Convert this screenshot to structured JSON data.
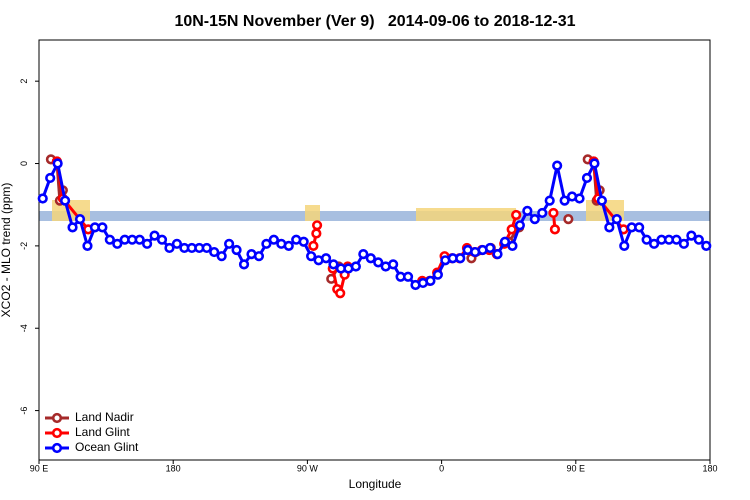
{
  "chart_data": {
    "type": "line",
    "title": "10N-15N November (Ver 9)   2014-09-06 to 2018-12-31",
    "x_label": "Longitude",
    "y_label": "XCO2 - MLO trend (ppm)",
    "xlim": [
      90,
      540
    ],
    "xticks": [
      {
        "value": 90,
        "label": "90 E"
      },
      180,
      {
        "value": 270,
        "label": "90 W"
      },
      {
        "value": 360,
        "label": "0"
      },
      {
        "value": 450,
        "label": "90 E"
      },
      {
        "value": 540,
        "label": "180"
      }
    ],
    "ylim": [
      -7.2,
      3
    ],
    "yticks": [
      -6,
      -4,
      -2,
      0,
      2
    ],
    "legend": "bottom-left",
    "series": [
      {
        "name": "Land Nadir",
        "color": "#a52a2a",
        "x": [
          98,
          102,
          104,
          106,
          null,
          286,
          291,
          null,
          380,
          393,
          null,
          405,
          412,
          null,
          445,
          null,
          458,
          462,
          464,
          466
        ],
        "values": [
          0.1,
          0.05,
          -0.9,
          -0.65,
          null,
          -2.8,
          -2.5,
          null,
          -2.3,
          -2.05,
          null,
          -1.9,
          -1.55,
          null,
          -1.35,
          null,
          0.1,
          0.05,
          -0.9,
          -0.65
        ]
      },
      {
        "name": "Land Glint",
        "color": "#ff0000",
        "x": [
          102,
          106,
          123,
          null,
          274,
          276,
          276.5,
          null,
          287,
          290,
          292,
          295,
          297,
          null,
          347,
          352,
          357,
          362,
          367,
          372,
          377,
          382,
          387,
          392,
          397,
          402,
          407,
          410,
          null,
          435,
          436,
          null,
          462,
          465,
          482
        ],
        "values": [
          0.05,
          -0.85,
          -1.6,
          null,
          -2.0,
          -1.7,
          -1.5,
          null,
          -2.55,
          -3.05,
          -3.15,
          -2.7,
          -2.5,
          null,
          -2.85,
          -2.85,
          -2.65,
          -2.25,
          -2.3,
          -2.3,
          -2.05,
          -2.15,
          -2.1,
          -2.1,
          -2.2,
          -1.95,
          -1.6,
          -1.25,
          null,
          -1.2,
          -1.6,
          null,
          0.05,
          -0.85,
          -1.6
        ]
      },
      {
        "name": "Ocean Glint",
        "color": "#0000ff",
        "x": [
          92.5,
          97.5,
          102.5,
          107.5,
          112.5,
          117.5,
          122.5,
          127.5,
          132.5,
          137.5,
          142.5,
          147.5,
          152.5,
          157.5,
          162.5,
          167.5,
          172.5,
          177.5,
          182.5,
          187.5,
          192.5,
          197.5,
          202.5,
          207.5,
          212.5,
          217.5,
          222.5,
          227.5,
          232.5,
          237.5,
          242.5,
          247.5,
          252.5,
          257.5,
          262.5,
          267.5,
          272.5,
          277.5,
          282.5,
          287.5,
          292.5,
          297.5,
          302.5,
          307.5,
          312.5,
          317.5,
          322.5,
          327.5,
          332.5,
          337.5,
          342.5,
          347.5,
          352.5,
          357.5,
          362.5,
          367.5,
          372.5,
          377.5,
          382.5,
          387.5,
          392.5,
          397.5,
          402.5,
          407.5,
          412.5,
          417.5,
          422.5,
          427.5,
          432.5,
          437.5,
          442.5,
          447.5,
          452.5,
          457.5,
          462.5,
          467.5,
          472.5,
          477.5,
          482.5,
          487.5,
          492.5,
          497.5,
          502.5,
          507.5,
          512.5,
          517.5,
          522.5,
          527.5,
          532.5,
          537.5
        ],
        "values": [
          -0.85,
          -0.35,
          0.0,
          -0.9,
          -1.55,
          -1.35,
          -2.0,
          -1.55,
          -1.55,
          -1.85,
          -1.95,
          -1.85,
          -1.85,
          -1.85,
          -1.95,
          -1.75,
          -1.85,
          -2.05,
          -1.95,
          -2.05,
          -2.05,
          -2.05,
          -2.05,
          -2.15,
          -2.25,
          -1.95,
          -2.1,
          -2.45,
          -2.2,
          -2.25,
          -1.95,
          -1.85,
          -1.95,
          -2.0,
          -1.85,
          -1.9,
          -2.25,
          -2.35,
          -2.3,
          -2.45,
          -2.55,
          -2.55,
          -2.5,
          -2.2,
          -2.3,
          -2.4,
          -2.5,
          -2.45,
          -2.75,
          -2.75,
          -2.95,
          -2.9,
          -2.85,
          -2.7,
          -2.35,
          -2.3,
          -2.3,
          -2.1,
          -2.15,
          -2.1,
          -2.05,
          -2.2,
          -1.9,
          -2.0,
          -1.5,
          -1.15,
          -1.35,
          -1.2,
          -0.9,
          -0.05,
          -0.9,
          -0.8,
          -0.85,
          -0.35,
          0.0,
          -0.9,
          -1.55,
          -1.35,
          -2.0,
          -1.55,
          -1.55,
          -1.85,
          -1.95,
          -1.85,
          -1.85,
          -1.85,
          -1.95,
          -1.75,
          -1.85,
          -2.0
        ]
      }
    ]
  }
}
